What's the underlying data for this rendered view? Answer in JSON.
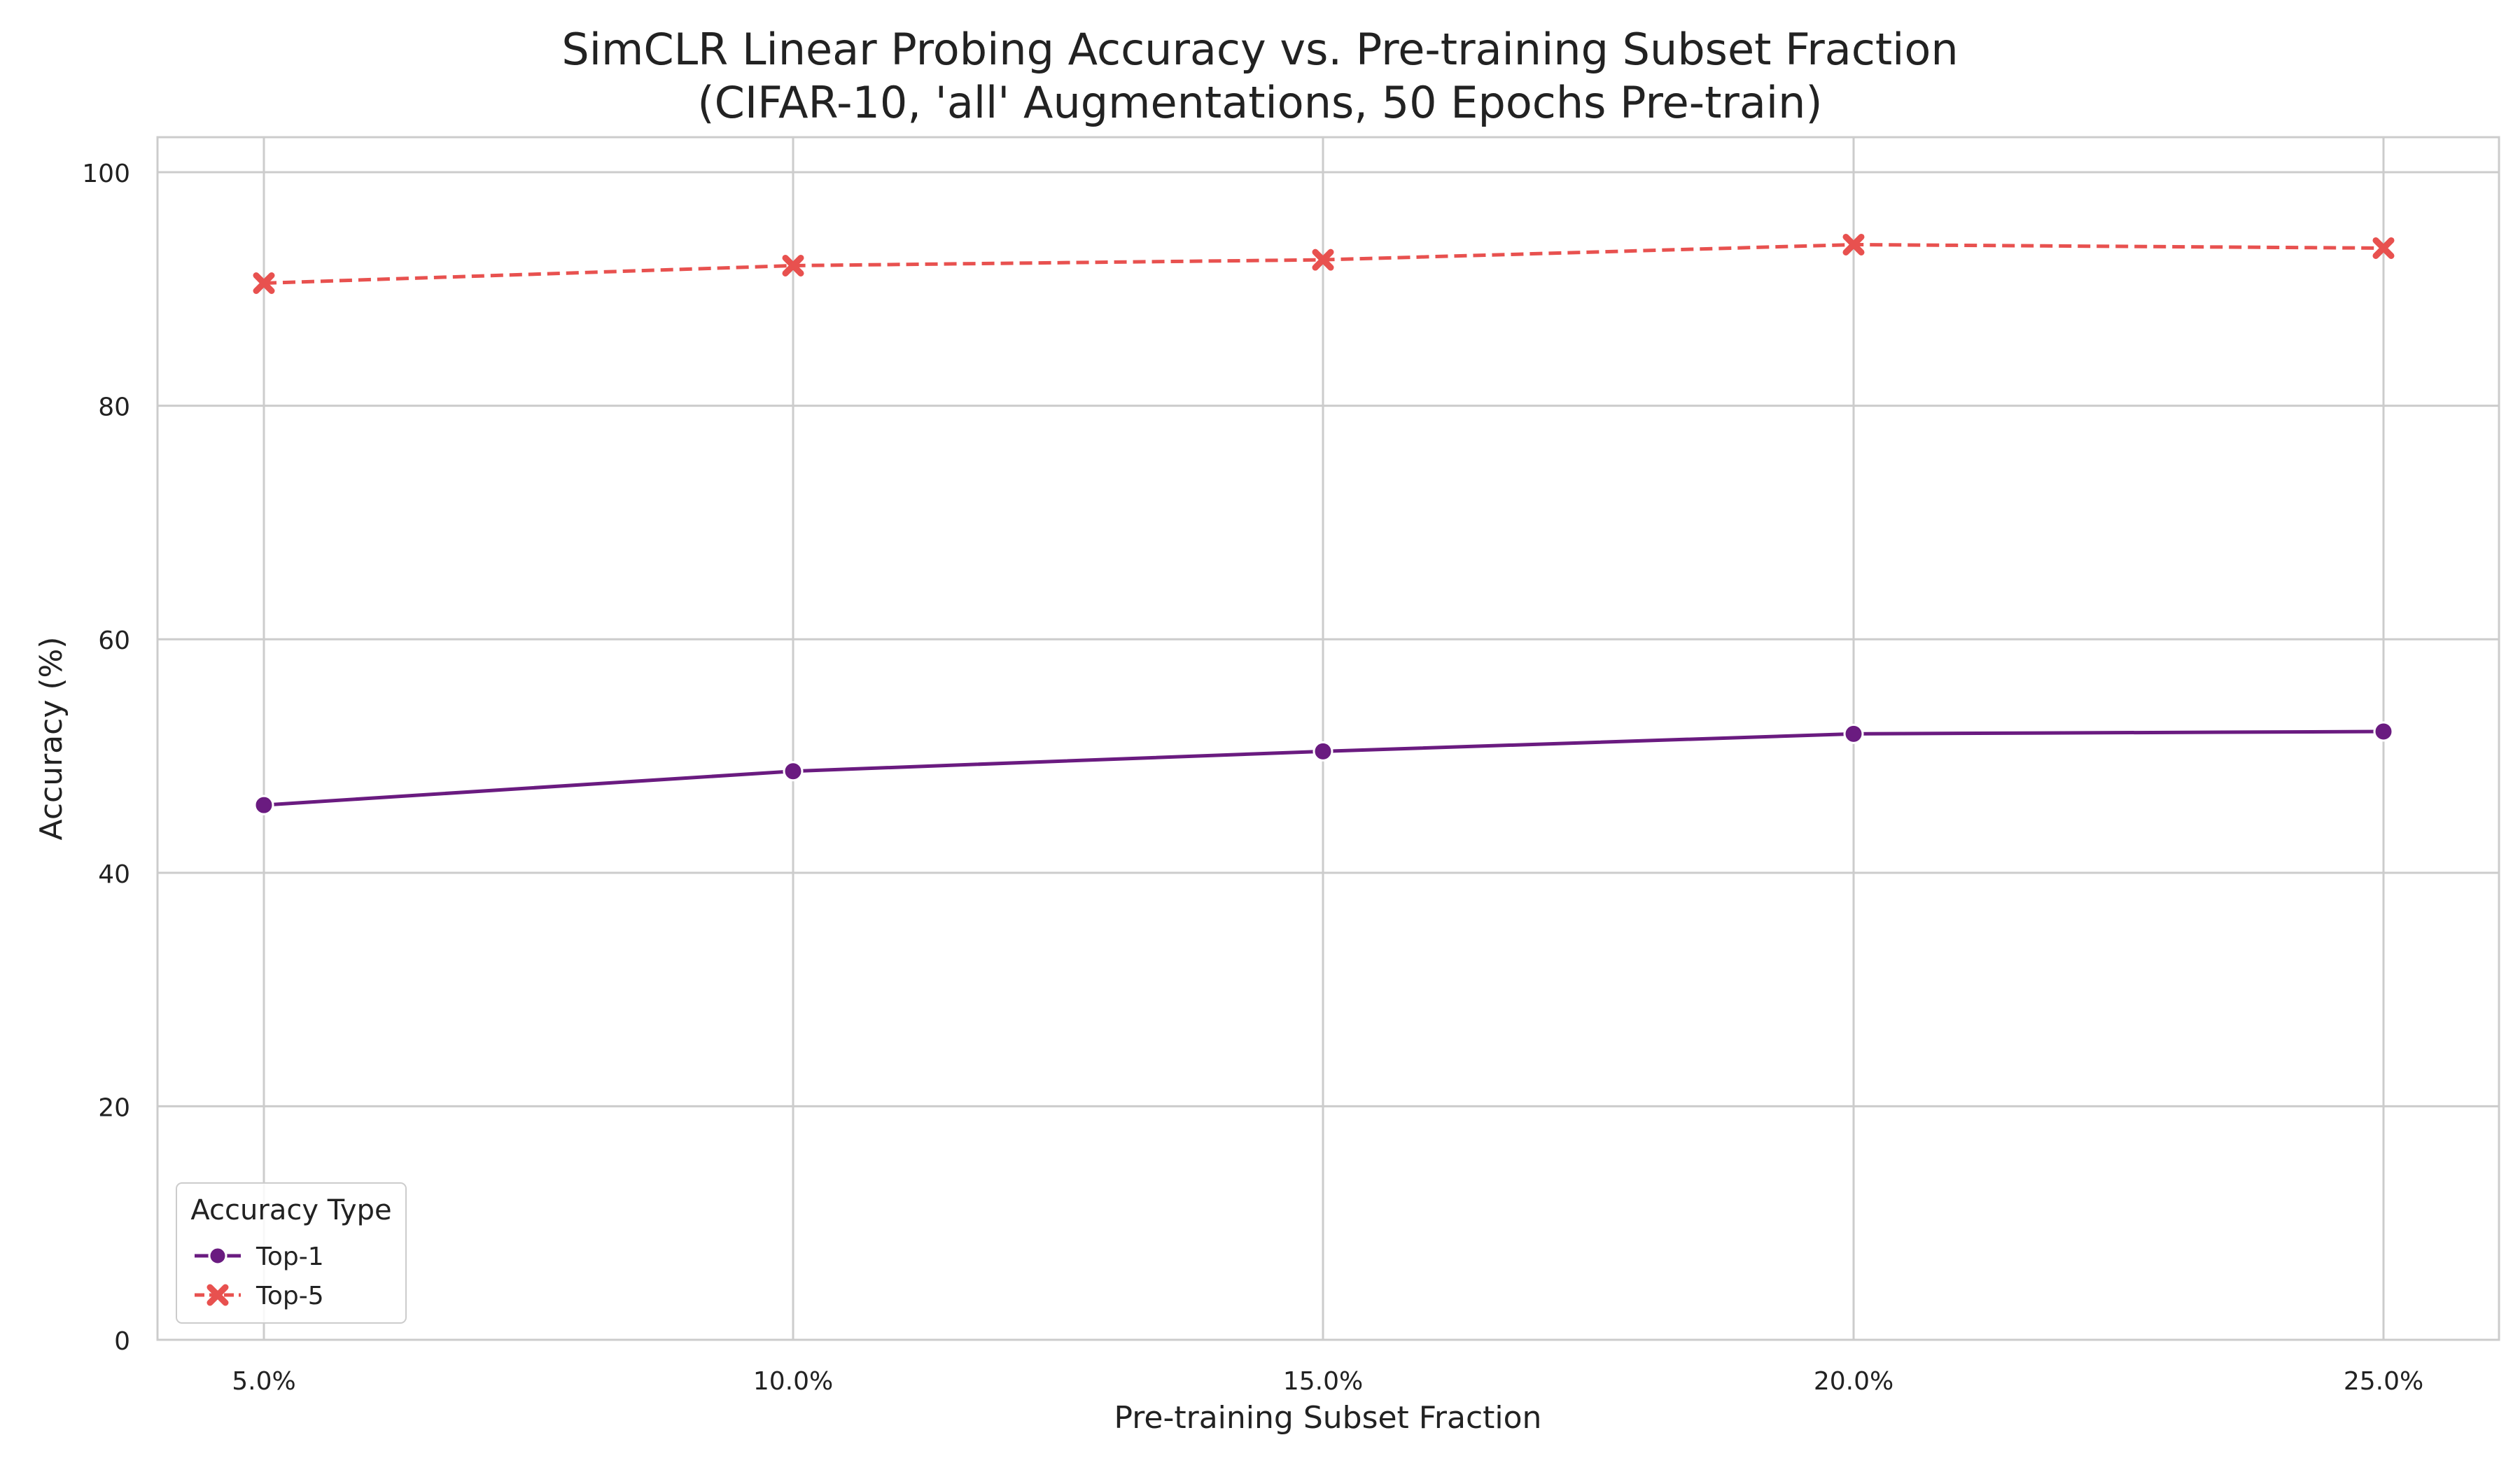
{
  "chart_data": {
    "type": "line",
    "title": "SimCLR Linear Probing Accuracy vs. Pre-training Subset Fraction",
    "subtitle": "(CIFAR-10, 'all' Augmentations, 50 Epochs Pre-train)",
    "xlabel": "Pre-training Subset Fraction",
    "ylabel": "Accuracy (%)",
    "x": [
      5,
      10,
      15,
      20,
      25
    ],
    "x_tick_labels": [
      "5.0%",
      "10.0%",
      "15.0%",
      "20.0%",
      "25.0%"
    ],
    "ylim": [
      0,
      103
    ],
    "y_ticks": [
      0,
      20,
      40,
      60,
      80,
      100
    ],
    "grid": true,
    "legend": {
      "title": "Accuracy Type",
      "placement": "lower-left"
    },
    "series": [
      {
        "name": "Top-1",
        "values": [
          45.8,
          48.7,
          50.4,
          51.9,
          52.1
        ],
        "color": "#6a1b80",
        "marker": "circle",
        "line_style": "solid"
      },
      {
        "name": "Top-5",
        "values": [
          90.5,
          92.0,
          92.5,
          93.8,
          93.5
        ],
        "color": "#e8514f",
        "marker": "x",
        "line_style": "dashed"
      }
    ]
  }
}
